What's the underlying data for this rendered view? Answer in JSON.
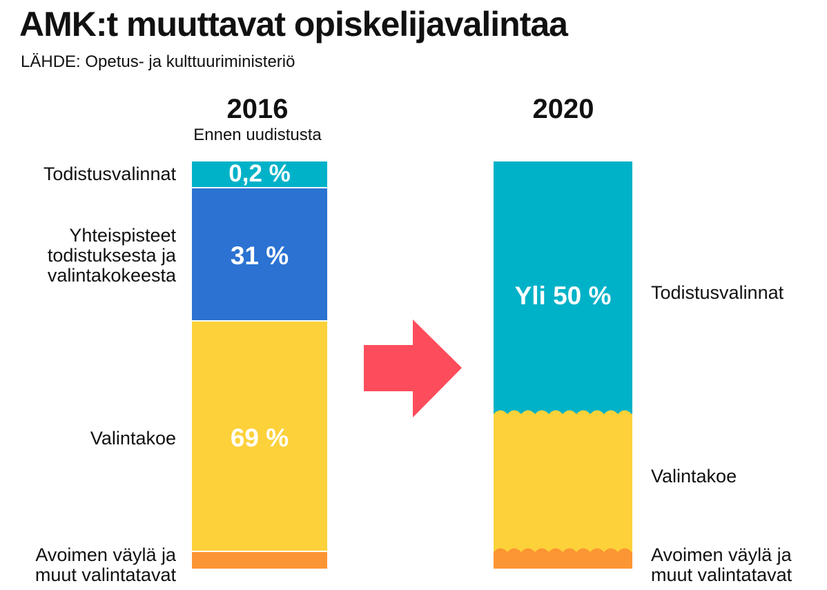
{
  "title": "AMK:t muuttavat opiskelijavalintaa",
  "source": "LÄHDE:  Opetus- ja kulttuuriministeriö",
  "chart_data": {
    "type": "bar",
    "stacked": true,
    "categories": [
      "2016",
      "2020"
    ],
    "category_subtitles": [
      "Ennen uudistusta",
      ""
    ],
    "series": [
      {
        "name": "Todistusvalinnat",
        "values": [
          0.2,
          50
        ],
        "value_labels": [
          "0,2 %",
          "Yli 50 %"
        ],
        "color": "#00b2c8"
      },
      {
        "name": "Yhteispisteet todistuksesta ja valintakokeesta",
        "values": [
          31,
          null
        ],
        "value_labels": [
          "31 %",
          ""
        ],
        "color": "#2b72d2"
      },
      {
        "name": "Valintakoe",
        "values": [
          69,
          null
        ],
        "value_labels": [
          "69 %",
          ""
        ],
        "color": "#fdd13a"
      },
      {
        "name": "Avoimen väylä ja muut valintatavat",
        "values": [
          null,
          null
        ],
        "value_labels": [
          "",
          ""
        ],
        "color": "#fc9534"
      }
    ],
    "left_labels": [
      "Todistusvalinnat",
      "Yhteispisteet\ntodistuksesta ja\nvalintakokeesta",
      "Valintakoe",
      "Avoimen väylä ja\nmuut valintatavat"
    ],
    "right_labels": [
      "Todistusvalinnat",
      "Valintakoe",
      "Avoimen väylä ja\nmuut valintatavat"
    ],
    "arrow_color": "#fd4d5c"
  }
}
